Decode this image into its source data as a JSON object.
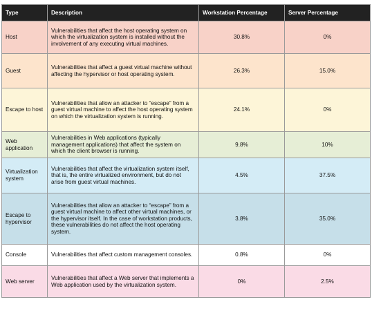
{
  "headers": [
    "Type",
    "Description",
    "Workstation Percentage",
    "Server Percentage"
  ],
  "rows": [
    {
      "type": "Host",
      "description": "Vulnerabilities that affect the host operating system on which the virtualization system is installed without the involvement of any executing virtual machines.",
      "workstation": "30.8%",
      "server": "0%",
      "color": "#f8d2c8"
    },
    {
      "type": "Guest",
      "description": "Vulnerabilities that affect a guest virtual machine without affecting the hypervisor or host operating system.",
      "workstation": "26.3%",
      "server": "15.0%",
      "color": "#fde4cc"
    },
    {
      "type": "Escape to host",
      "description": "Vulnerabilities that allow an attacker to “escape” from a guest virtual machine to affect the host operating system on which the virtualization system is running.",
      "workstation": "24.1%",
      "server": "0%",
      "color": "#fdf5d8"
    },
    {
      "type": "Web application",
      "description": "Vulnerabilities in Web applications (typically management applications) that affect the system on which the client browser is running.",
      "workstation": "9.8%",
      "server": "10%",
      "color": "#e6eed6"
    },
    {
      "type": "Virtualization system",
      "description": "Vulnerabilities that affect the virtualization system itself, that is, the entire virtualized environment, but do not arise from guest virtual machines.",
      "workstation": "4.5%",
      "server": "37.5%",
      "color": "#d4ecf6"
    },
    {
      "type": "Escape to hypervisor",
      "description": "Vulnerabilities that allow an attacker to “escape” from a guest virtual machine to affect other virtual machines, or the hypervisor itself. In the case of workstation products, these vulnerabilities do not affect the host operating system.",
      "workstation": "3.8%",
      "server": "35.0%",
      "color": "#c6dfe9"
    },
    {
      "type": "Console",
      "description": "Vulnerabilities that affect custom management consoles.",
      "workstation": "0.8%",
      "server": "0%",
      "color": "#ddcade0"
    },
    {
      "type": "Web server",
      "description": "Vulnerabilities that affect a Web server that implements a Web application used by the virtualization system.",
      "workstation": "0%",
      "server": "2.5%",
      "color": "#fadbe6"
    }
  ]
}
